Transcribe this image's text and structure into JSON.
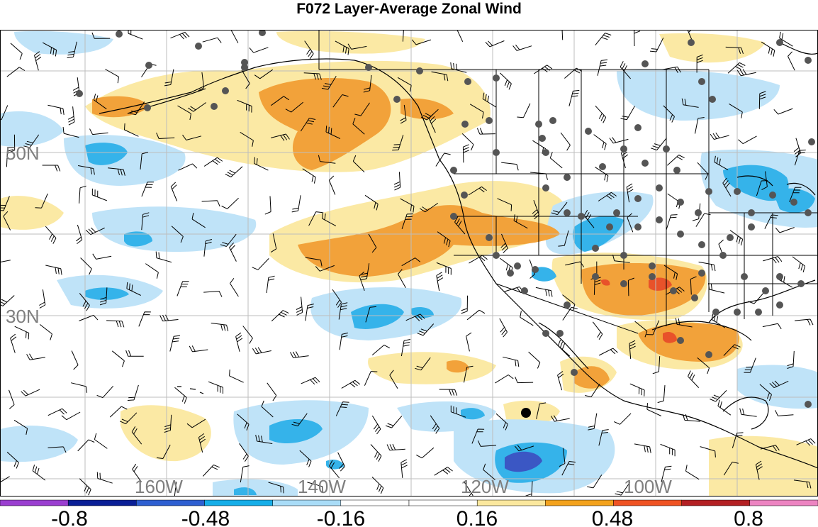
{
  "title": "F072 Layer-Average Zonal Wind",
  "latitude_labels": [
    "50N",
    "30N"
  ],
  "longitude_labels": [
    "160W",
    "140W",
    "120W",
    "100W"
  ],
  "colorbar": {
    "colors": [
      "#9a3fd0",
      "#0a1f96",
      "#2e5fd1",
      "#16aee8",
      "#a9dcf7",
      "#ffffff",
      "#ffffff",
      "#fbe89e",
      "#f3a21d",
      "#ef5323",
      "#b32023",
      "#ec84c1"
    ],
    "labels": [
      "-0.8",
      "-0.48",
      "-0.16",
      "0.16",
      "0.48",
      "0.8"
    ]
  },
  "colors": {
    "light_blue": "#bfe3f8",
    "blue": "#35b3ea",
    "dark_blue": "#3b57c4",
    "light_yellow": "#fbe9a4",
    "orange": "#f2a23a",
    "red_orange": "#e8522a",
    "stations": "#555555",
    "grid": "#bdbdbd"
  }
}
